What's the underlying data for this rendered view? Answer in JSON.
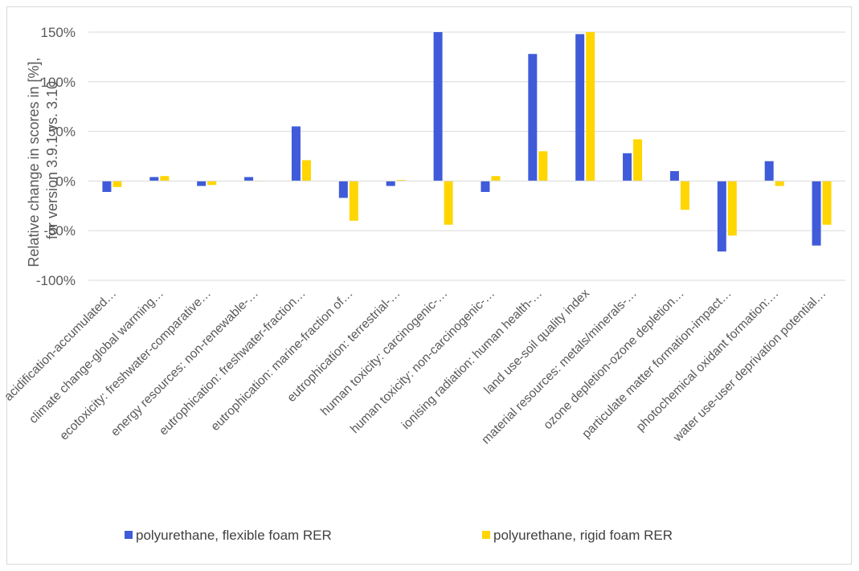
{
  "chart_data": {
    "type": "bar",
    "title": "",
    "ylabel_lines": [
      "Relative change in scores in [%],",
      "for version 3.9.1 vs. 3.10"
    ],
    "xlabel": "",
    "ylim": [
      -100,
      150
    ],
    "yticks": [
      -100,
      -50,
      0,
      50,
      100,
      150
    ],
    "ytick_labels": [
      "-100%",
      "-50%",
      "0%",
      "50%",
      "100%",
      "150%"
    ],
    "grid": true,
    "legend_position": "bottom",
    "categories": [
      "acidification-accumulated…",
      "climate change-global warming…",
      "ecotoxicity: freshwater-comparative…",
      "energy resources: non-renewable-…",
      "eutrophication: freshwater-fraction…",
      "eutrophication: marine-fraction of…",
      "eutrophication: terrestrial-…",
      "human toxicity: carcinogenic-…",
      "human toxicity: non-carcinogenic-…",
      "ionising radiation: human health-…",
      "land use-soil quality index",
      "material resources: metals/minerals-…",
      "ozone depletion-ozone depletion…",
      "particulate matter formation-impact…",
      "photochemical oxidant formation:…",
      "water use-user deprivation potential…"
    ],
    "series": [
      {
        "name": "polyurethane, flexible foam RER",
        "color": "#3f5bd9",
        "values": [
          -11,
          4,
          -5,
          4,
          55,
          -17,
          -5,
          150,
          -11,
          128,
          148,
          28,
          10,
          -71,
          20,
          -65
        ]
      },
      {
        "name": "polyurethane, rigid foam RER",
        "color": "#ffd600",
        "values": [
          -6,
          5,
          -4,
          0,
          21,
          -40,
          1,
          -44,
          5,
          30,
          150,
          42,
          -29,
          -55,
          -5,
          -44
        ]
      }
    ]
  }
}
